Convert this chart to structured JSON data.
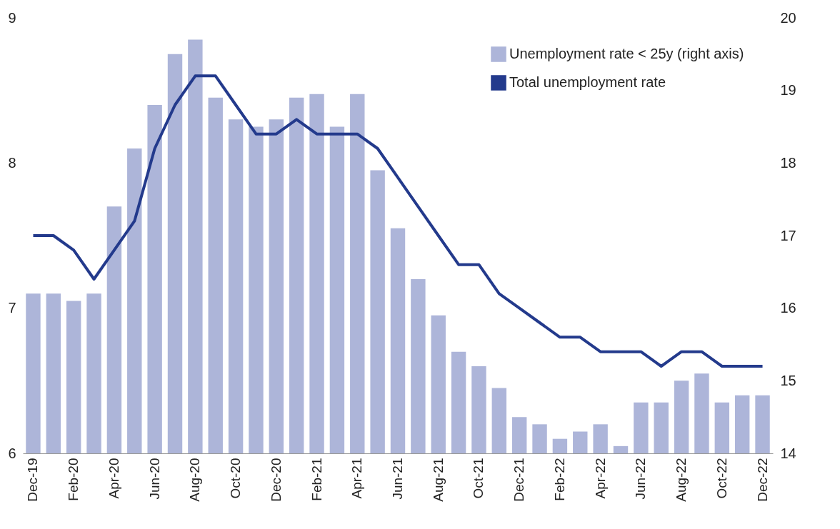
{
  "chart_data": {
    "type": "bar",
    "categories": [
      "Dec-19",
      null,
      "Feb-20",
      null,
      "Apr-20",
      null,
      "Jun-20",
      null,
      "Aug-20",
      null,
      "Oct-20",
      null,
      "Dec-20",
      null,
      "Feb-21",
      null,
      "Apr-21",
      null,
      "Jun-21",
      null,
      "Aug-21",
      null,
      "Oct-21",
      null,
      "Dec-21",
      null,
      "Feb-22",
      null,
      "Apr-22",
      null,
      "Jun-22",
      null,
      "Aug-22",
      null,
      "Oct-22",
      null,
      "Dec-22"
    ],
    "series": [
      {
        "name": "Unemployment rate < 25y (right axis)",
        "axis": "y2",
        "color": "#adb5d9",
        "values": [
          16.2,
          16.2,
          16.1,
          16.2,
          17.4,
          18.2,
          18.8,
          19.5,
          19.7,
          18.9,
          18.6,
          18.5,
          18.6,
          18.9,
          18.95,
          18.5,
          18.95,
          17.9,
          17.1,
          16.4,
          15.9,
          15.4,
          15.2,
          14.9,
          14.5,
          14.4,
          14.2,
          14.3,
          14.4,
          14.1,
          14.7,
          14.7,
          15.0,
          15.1,
          14.7,
          14.8,
          14.8
        ]
      },
      {
        "name": "Total unemployment rate",
        "type": "line",
        "color": "#233a8c",
        "values": [
          7.5,
          7.5,
          7.4,
          7.2,
          7.4,
          7.6,
          8.1,
          8.4,
          8.6,
          8.6,
          8.4,
          8.2,
          8.2,
          8.3,
          8.2,
          8.2,
          8.2,
          8.1,
          7.9,
          7.7,
          7.5,
          7.3,
          7.3,
          7.1,
          7.0,
          6.9,
          6.8,
          6.8,
          6.7,
          6.7,
          6.7,
          6.6,
          6.7,
          6.7,
          6.6,
          6.6,
          6.6
        ]
      }
    ],
    "ylim": [
      6,
      9
    ],
    "yticks": [
      6,
      7,
      8,
      9
    ],
    "y2lim": [
      14,
      20
    ],
    "y2ticks": [
      14,
      15,
      16,
      17,
      18,
      19,
      20
    ],
    "grid": false,
    "legend": "top right",
    "line_style": "solid",
    "marker": "none"
  }
}
